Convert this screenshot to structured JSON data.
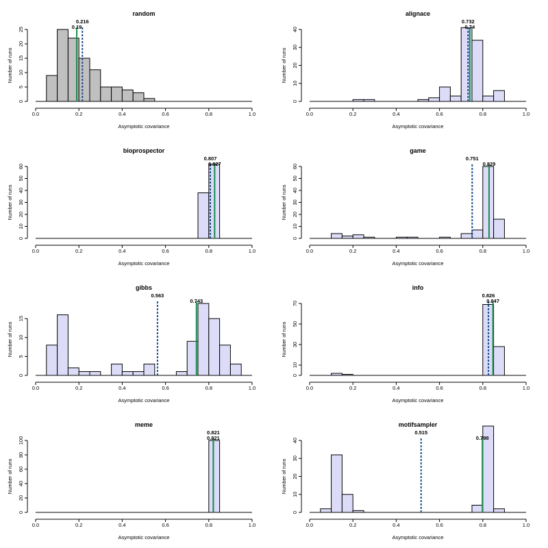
{
  "chart_data": [
    {
      "type": "bar",
      "title": "random",
      "xlabel": "Asymptotic covariance",
      "ylabel": "Number of runs",
      "xlim": [
        0,
        1
      ],
      "ylim": [
        0,
        25
      ],
      "yticks": [
        0,
        5,
        10,
        15,
        20,
        25
      ],
      "xticks": [
        "0.0",
        "0.2",
        "0.4",
        "0.6",
        "0.8",
        "1.0"
      ],
      "bin_width": 0.05,
      "fill": "#c0c0c0",
      "bin_starts": [
        0.05,
        0.1,
        0.15,
        0.2,
        0.25,
        0.3,
        0.35,
        0.4,
        0.45,
        0.5
      ],
      "values": [
        9,
        25,
        22,
        15,
        11,
        5,
        5,
        4,
        3,
        1
      ],
      "dashed": {
        "value": 0.216,
        "label": "0.216",
        "color": "#1a4f8c"
      },
      "solid": {
        "value": 0.19,
        "label": "0.19",
        "color": "#1a8c4a"
      }
    },
    {
      "type": "bar",
      "title": "alignace",
      "xlabel": "Asymptotic covariance",
      "ylabel": "Number of runs",
      "xlim": [
        0,
        1
      ],
      "ylim": [
        0,
        40
      ],
      "yticks": [
        0,
        10,
        20,
        30,
        40
      ],
      "xticks": [
        "0.0",
        "0.2",
        "0.4",
        "0.6",
        "0.8",
        "1.0"
      ],
      "bin_width": 0.05,
      "fill": "#dcdcf8",
      "bin_starts": [
        0.2,
        0.25,
        0.5,
        0.55,
        0.6,
        0.65,
        0.7,
        0.75,
        0.8,
        0.85
      ],
      "values": [
        1,
        1,
        1,
        2,
        8,
        3,
        41,
        34,
        3,
        6
      ],
      "dashed": {
        "value": 0.732,
        "label": "0.732",
        "color": "#1a4f8c"
      },
      "solid": {
        "value": 0.74,
        "label": "0.74",
        "color": "#1a8c4a"
      }
    },
    {
      "type": "bar",
      "title": "bioprospector",
      "xlabel": "Asymptotic covariance",
      "ylabel": "Number of runs",
      "xlim": [
        0,
        1
      ],
      "ylim": [
        0,
        60
      ],
      "yticks": [
        0,
        10,
        20,
        30,
        40,
        50,
        60
      ],
      "xticks": [
        "0.0",
        "0.2",
        "0.4",
        "0.6",
        "0.8",
        "1.0"
      ],
      "bin_width": 0.05,
      "fill": "#dcdcf8",
      "bin_starts": [
        0.75,
        0.8
      ],
      "values": [
        38,
        62
      ],
      "dashed": {
        "value": 0.807,
        "label": "0.807",
        "color": "#1a4f8c"
      },
      "solid": {
        "value": 0.827,
        "label": "0.827",
        "color": "#1a8c4a"
      }
    },
    {
      "type": "bar",
      "title": "game",
      "xlabel": "Asymptotic covariance",
      "ylabel": "Number of runs",
      "xlim": [
        0,
        1
      ],
      "ylim": [
        0,
        60
      ],
      "yticks": [
        0,
        10,
        20,
        30,
        40,
        50,
        60
      ],
      "xticks": [
        "0.0",
        "0.2",
        "0.4",
        "0.6",
        "0.8",
        "1.0"
      ],
      "bin_width": 0.05,
      "fill": "#dcdcf8",
      "bin_starts": [
        0.1,
        0.15,
        0.2,
        0.25,
        0.4,
        0.45,
        0.6,
        0.7,
        0.75,
        0.8,
        0.85
      ],
      "values": [
        4,
        2,
        3,
        1,
        1,
        1,
        1,
        4,
        7,
        60,
        16
      ],
      "dashed": {
        "value": 0.751,
        "label": "0.751",
        "color": "#1a4f8c"
      },
      "solid": {
        "value": 0.829,
        "label": "0.829",
        "color": "#1a8c4a"
      }
    },
    {
      "type": "bar",
      "title": "gibbs",
      "xlabel": "Asymptotic covariance",
      "ylabel": "Number of runs",
      "xlim": [
        0,
        1
      ],
      "ylim": [
        0,
        19
      ],
      "yticks": [
        0,
        5,
        10,
        15
      ],
      "xticks": [
        "0.0",
        "0.2",
        "0.4",
        "0.6",
        "0.8",
        "1.0"
      ],
      "bin_width": 0.05,
      "fill": "#dcdcf8",
      "bin_starts": [
        0.05,
        0.1,
        0.15,
        0.2,
        0.25,
        0.35,
        0.4,
        0.45,
        0.5,
        0.65,
        0.7,
        0.75,
        0.8,
        0.85,
        0.9
      ],
      "values": [
        8,
        16,
        2,
        1,
        1,
        3,
        1,
        1,
        3,
        1,
        9,
        19,
        15,
        8,
        3
      ],
      "dashed": {
        "value": 0.563,
        "label": "0.563",
        "color": "#1a4f8c"
      },
      "solid": {
        "value": 0.743,
        "label": "0.743",
        "color": "#1a8c4a"
      }
    },
    {
      "type": "bar",
      "title": "info",
      "xlabel": "Asymptotic covariance",
      "ylabel": "Number of runs",
      "xlim": [
        0,
        1
      ],
      "ylim": [
        0,
        70
      ],
      "yticks": [
        0,
        10,
        30,
        50,
        70
      ],
      "xticks": [
        "0.0",
        "0.2",
        "0.4",
        "0.6",
        "0.8",
        "1.0"
      ],
      "bin_width": 0.05,
      "fill": "#dcdcf8",
      "bin_starts": [
        0.1,
        0.15,
        0.8,
        0.85
      ],
      "values": [
        2,
        1,
        69,
        28
      ],
      "dashed": {
        "value": 0.826,
        "label": "0.826",
        "color": "#1a4f8c"
      },
      "solid": {
        "value": 0.847,
        "label": "0.847",
        "color": "#1a8c4a"
      }
    },
    {
      "type": "bar",
      "title": "meme",
      "xlabel": "Asymptotic covariance",
      "ylabel": "Number of runs",
      "xlim": [
        0,
        1
      ],
      "ylim": [
        0,
        100
      ],
      "yticks": [
        0,
        20,
        40,
        60,
        80,
        100
      ],
      "xticks": [
        "0.0",
        "0.2",
        "0.4",
        "0.6",
        "0.8",
        "1.0"
      ],
      "bin_width": 0.05,
      "fill": "#dcdcf8",
      "bin_starts": [
        0.8
      ],
      "values": [
        100
      ],
      "dashed": {
        "value": 0.821,
        "label": "0.821",
        "color": "#1a4f8c"
      },
      "solid": {
        "value": 0.821,
        "label": "0.821",
        "color": "#1a8c4a"
      }
    },
    {
      "type": "bar",
      "title": "motifsampler",
      "xlabel": "Asymptotic covariance",
      "ylabel": "Number of runs",
      "xlim": [
        0,
        1
      ],
      "ylim": [
        0,
        40
      ],
      "yticks": [
        0,
        10,
        20,
        30,
        40
      ],
      "xticks": [
        "0.0",
        "0.2",
        "0.4",
        "0.6",
        "0.8",
        "1.0"
      ],
      "bin_width": 0.05,
      "fill": "#dcdcf8",
      "bin_starts": [
        0.05,
        0.1,
        0.15,
        0.2,
        0.75,
        0.8,
        0.85
      ],
      "values": [
        2,
        32,
        10,
        1,
        4,
        48,
        2
      ],
      "dashed": {
        "value": 0.515,
        "label": "0.515",
        "color": "#1a4f8c"
      },
      "solid": {
        "value": 0.798,
        "label": "0.798",
        "color": "#1a8c4a"
      }
    }
  ]
}
